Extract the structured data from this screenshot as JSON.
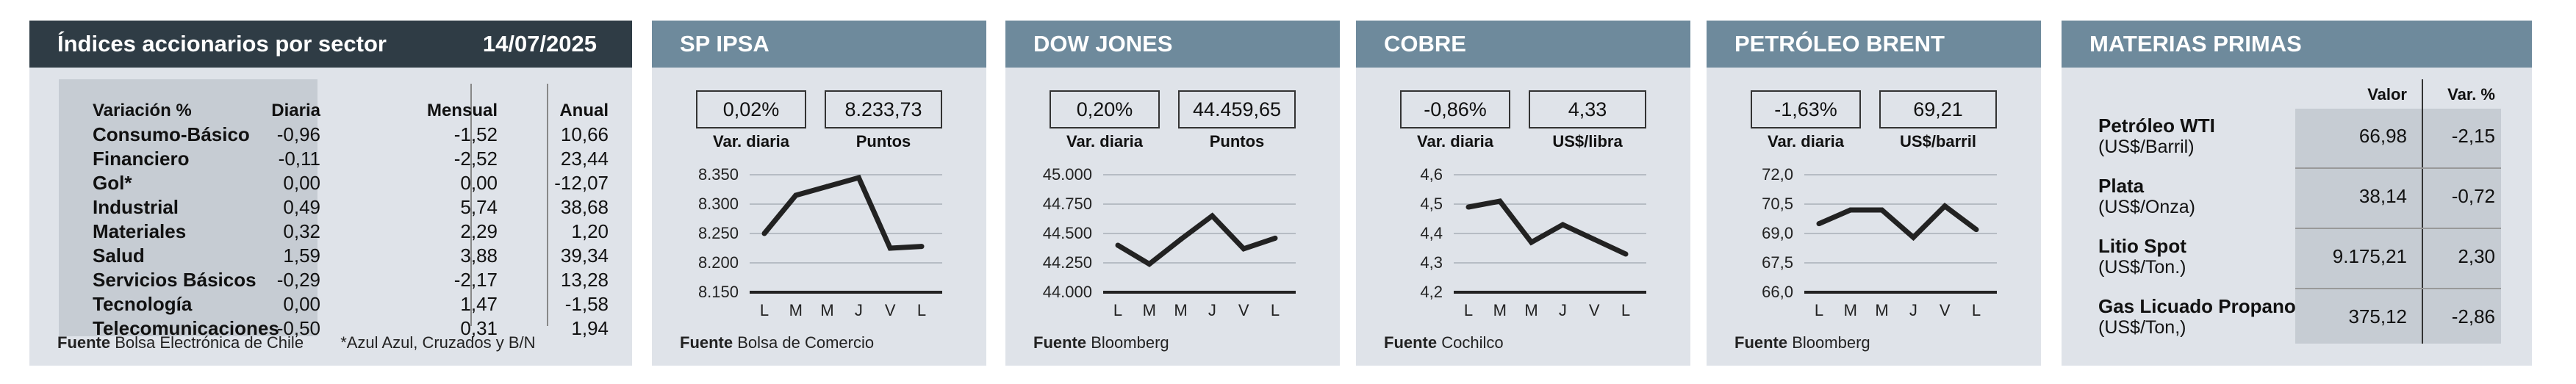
{
  "sector_table": {
    "title": "Índices accionarios por sector",
    "date": "14/07/2025",
    "headers": [
      "Variación %",
      "Diaria",
      "Mensual",
      "Anual"
    ],
    "rows": [
      {
        "label": "Consumo-Básico",
        "diaria": "-0,96",
        "mensual": "-1,52",
        "anual": "10,66"
      },
      {
        "label": "Financiero",
        "diaria": "-0,11",
        "mensual": "-2,52",
        "anual": "23,44"
      },
      {
        "label": "Gol*",
        "diaria": "0,00",
        "mensual": "0,00",
        "anual": "-12,07"
      },
      {
        "label": "Industrial",
        "diaria": "0,49",
        "mensual": "5,74",
        "anual": "38,68"
      },
      {
        "label": "Materiales",
        "diaria": "0,32",
        "mensual": "2,29",
        "anual": "1,20"
      },
      {
        "label": "Salud",
        "diaria": "1,59",
        "mensual": "3,88",
        "anual": "39,34"
      },
      {
        "label": "Servicios Básicos",
        "diaria": "-0,29",
        "mensual": "-2,17",
        "anual": "13,28"
      },
      {
        "label": "Tecnología",
        "diaria": "0,00",
        "mensual": "1,47",
        "anual": "-1,58"
      },
      {
        "label": "Telecomunicaciones",
        "diaria": "-0,50",
        "mensual": "0,31",
        "anual": "1,94"
      }
    ],
    "source_label": "Fuente",
    "source": "Bolsa Electrónica de Chile",
    "footnote": "*Azul Azul, Cruzados y B/N"
  },
  "colors": {
    "header_dark": "#2f3c45",
    "header": "#6e8a9c",
    "panel": "#dfe3e9",
    "shade": "#c6ccd3",
    "line": "#222222"
  },
  "chart_data": [
    {
      "type": "line",
      "title": "SP IPSA",
      "var_value": "0,02%",
      "var_label": "Var. diaria",
      "main_value": "8.233,73",
      "main_label": "Puntos",
      "x": [
        "L",
        "M",
        "M",
        "J",
        "V",
        "L"
      ],
      "values": [
        8250,
        8315,
        8330,
        8345,
        8225,
        8228
      ],
      "ylim": [
        8150,
        8350
      ],
      "yticks": [
        "8.150",
        "8.200",
        "8.250",
        "8.300",
        "8.350"
      ],
      "source_label": "Fuente",
      "source": "Bolsa de Comercio"
    },
    {
      "type": "line",
      "title": "DOW JONES",
      "var_value": "0,20%",
      "var_label": "Var. diaria",
      "main_value": "44.459,65",
      "main_label": "Puntos",
      "x": [
        "L",
        "M",
        "M",
        "J",
        "V",
        "L"
      ],
      "values": [
        44400,
        44240,
        44450,
        44650,
        44370,
        44460
      ],
      "ylim": [
        44000,
        45000
      ],
      "yticks": [
        "44.000",
        "44.250",
        "44.500",
        "44.750",
        "45.000"
      ],
      "source_label": "Fuente",
      "source": "Bloomberg"
    },
    {
      "type": "line",
      "title": "COBRE",
      "var_value": "-0,86%",
      "var_label": "Var. diaria",
      "main_value": "4,33",
      "main_label": "US$/libra",
      "x": [
        "L",
        "M",
        "M",
        "J",
        "V",
        "L"
      ],
      "values": [
        4.49,
        4.51,
        4.37,
        4.43,
        4.38,
        4.33
      ],
      "ylim": [
        4.2,
        4.6
      ],
      "yticks": [
        "4,2",
        "4,3",
        "4,4",
        "4,5",
        "4,6"
      ],
      "source_label": "Fuente",
      "source": "Cochilco"
    },
    {
      "type": "line",
      "title": "PETRÓLEO BRENT",
      "var_value": "-1,63%",
      "var_label": "Var. diaria",
      "main_value": "69,21",
      "main_label": "US$/barril",
      "x": [
        "L",
        "M",
        "M",
        "J",
        "V",
        "L"
      ],
      "values": [
        69.5,
        70.2,
        70.2,
        68.8,
        70.4,
        69.2
      ],
      "ylim": [
        66.0,
        72.0
      ],
      "yticks": [
        "66,0",
        "67,5",
        "69,0",
        "70,5",
        "72,0"
      ],
      "source_label": "Fuente",
      "source": "Bloomberg"
    }
  ],
  "materias_primas": {
    "title": "MATERIAS PRIMAS",
    "headers": [
      "Valor",
      "Var. %"
    ],
    "rows": [
      {
        "name": "Petróleo WTI",
        "unit": "(US$/Barril)",
        "valor": "66,98",
        "var": "-2,15"
      },
      {
        "name": "Plata",
        "unit": "(US$/Onza)",
        "valor": "38,14",
        "var": "-0,72"
      },
      {
        "name": "Litio Spot",
        "unit": "(US$/Ton.)",
        "valor": "9.175,21",
        "var": "2,30"
      },
      {
        "name": "Gas Licuado Propano",
        "unit": "(US$/Ton,)",
        "valor": "375,12",
        "var": "-2,86"
      }
    ]
  }
}
